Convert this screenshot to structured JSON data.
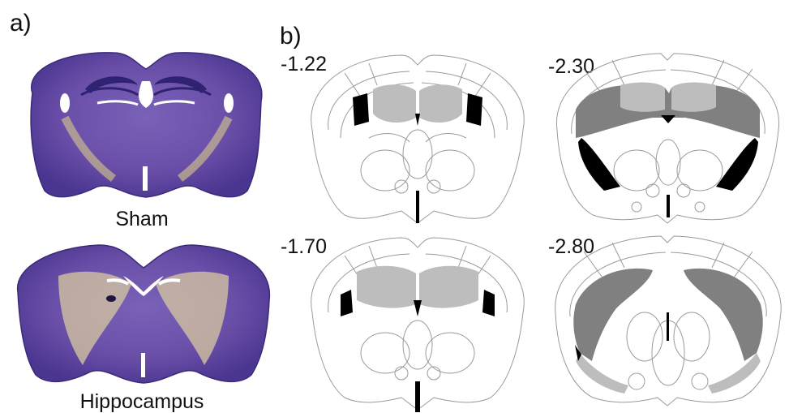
{
  "panel_a": {
    "label": "a)",
    "sections": [
      {
        "caption": "Sham"
      },
      {
        "caption": "Hippocampus"
      }
    ]
  },
  "panel_b": {
    "label": "b)",
    "sections": [
      {
        "coordinate": "-1.22"
      },
      {
        "coordinate": "-2.30"
      },
      {
        "coordinate": "-1.70"
      },
      {
        "coordinate": "-2.80"
      }
    ]
  },
  "colors": {
    "nissl_stain": "#6a4fa8",
    "nissl_dark": "#3b2a78",
    "damage_pale": "#d8c9a0",
    "atlas_line": "#9a9a9a",
    "lesion_light": "#bdbdbd",
    "lesion_medium": "#808080",
    "lesion_severe": "#000000"
  }
}
